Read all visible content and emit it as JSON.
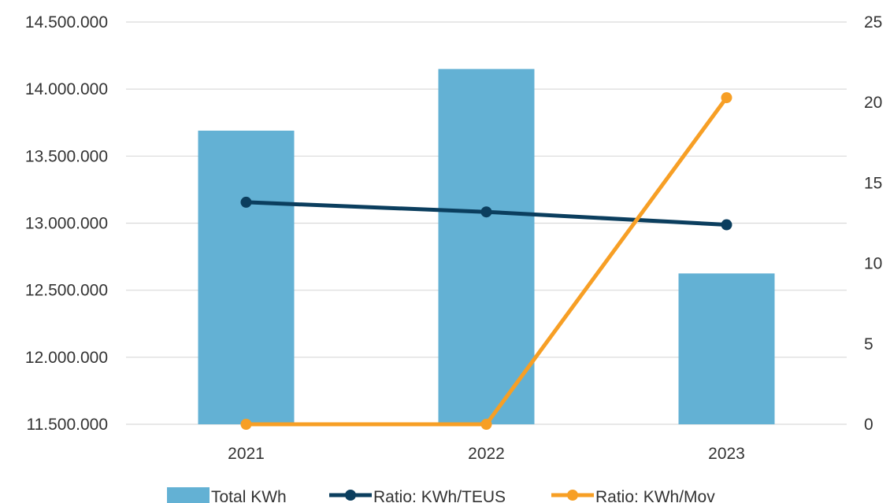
{
  "chart_data": {
    "type": "bar",
    "categories": [
      "2021",
      "2022",
      "2023"
    ],
    "series": [
      {
        "name": "Total KWh",
        "type": "bar",
        "axis": "left",
        "color": "#63b1d4",
        "values": [
          13690000,
          14150000,
          12625000
        ]
      },
      {
        "name": "Ratio: KWh/TEUS",
        "type": "line",
        "axis": "right",
        "color": "#0b3e5e",
        "values": [
          13.8,
          13.2,
          12.4
        ]
      },
      {
        "name": "Ratio: KWh/Mov",
        "type": "line",
        "axis": "right",
        "color": "#f79f25",
        "values": [
          0,
          0,
          20.3
        ]
      }
    ],
    "y_left": {
      "ylim": [
        11500000,
        14500000
      ],
      "ticks": [
        11500000,
        12000000,
        12500000,
        13000000,
        13500000,
        14000000,
        14500000
      ],
      "tick_labels": [
        "11.500.000",
        "12.000.000",
        "12.500.000",
        "13.000.000",
        "13.500.000",
        "14.000.000",
        "14.500.000"
      ]
    },
    "y_right": {
      "ylim": [
        0,
        25
      ],
      "ticks": [
        0,
        5,
        10,
        15,
        20,
        25
      ],
      "tick_labels": [
        "0",
        "5",
        "10",
        "15",
        "20",
        "25"
      ]
    },
    "grid": true,
    "legend_position": "bottom"
  }
}
